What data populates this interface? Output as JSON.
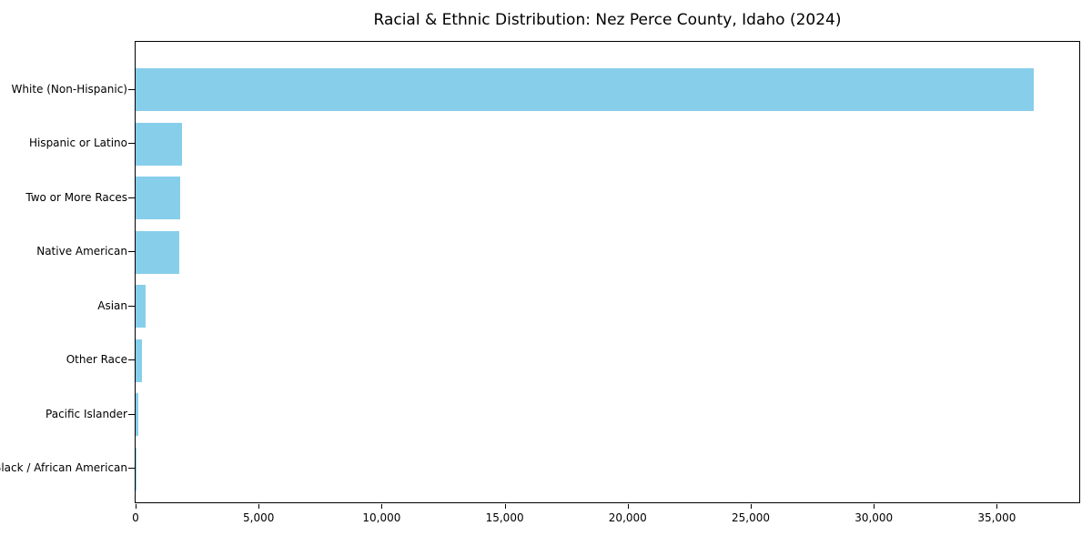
{
  "header": {
    "title": "Racial & Ethnic Distribution: Nez Perce County, Idaho (2024)"
  },
  "chart_data": {
    "type": "bar",
    "orientation": "horizontal",
    "title": "Racial & Ethnic Distribution: Nez Perce County, Idaho (2024)",
    "categories": [
      "White (Non-Hispanic)",
      "Hispanic or Latino",
      "Two or More Races",
      "Native American",
      "Asian",
      "Other Race",
      "Pacific Islander",
      "Black / African American"
    ],
    "values": [
      36500,
      1870,
      1810,
      1760,
      390,
      245,
      100,
      50
    ],
    "xlabel": "",
    "ylabel": "",
    "xlim": [
      0,
      38350
    ],
    "x_ticks": [
      0,
      5000,
      10000,
      15000,
      20000,
      25000,
      30000,
      35000
    ],
    "x_tick_labels": [
      "0",
      "5,000",
      "10,000",
      "15,000",
      "20,000",
      "25,000",
      "30,000",
      "35,000"
    ],
    "bar_color": "#87CEEB",
    "frame_color": "#000000",
    "grid": false,
    "legend": null
  }
}
